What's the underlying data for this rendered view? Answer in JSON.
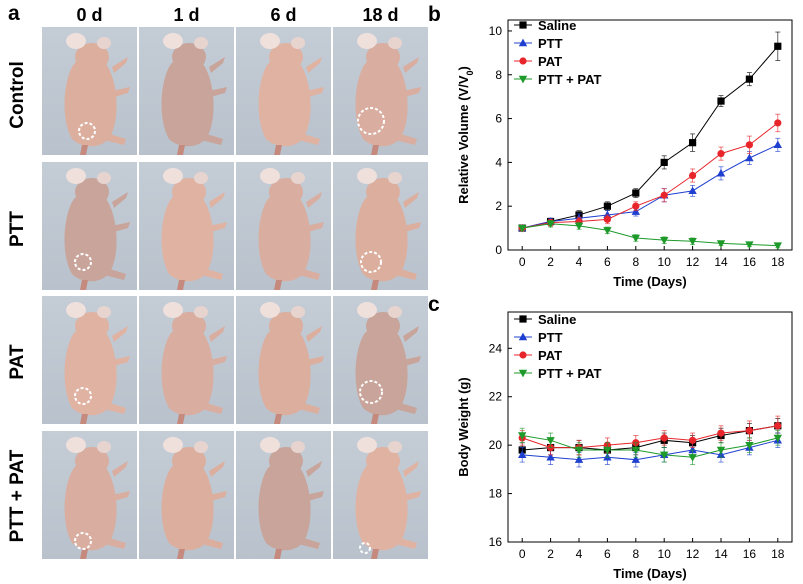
{
  "panel_a": {
    "letter": "a",
    "columns": [
      "0 d",
      "1 d",
      "6 d",
      "18 d"
    ],
    "rows": [
      "Control",
      "PTT",
      "PAT",
      "PTT + PAT"
    ],
    "skin_tones": [
      "#dcae9e",
      "#c8a49a",
      "#e0b2a2",
      "#d9ad9f"
    ],
    "background_color": "#c0c9d3"
  },
  "panel_b": {
    "letter": "b"
  },
  "panel_c": {
    "letter": "c"
  },
  "chart_data": [
    {
      "type": "line",
      "title": "",
      "xlabel": "Time (Days)",
      "ylabel": "Relative Volume (V/V",
      "ylabel_sub": "0",
      "ylabel_end": ")",
      "xlim": [
        -1,
        19
      ],
      "ylim": [
        0,
        10.5
      ],
      "xticks": [
        0,
        2,
        4,
        6,
        8,
        10,
        12,
        14,
        16,
        18
      ],
      "yticks": [
        0,
        2,
        4,
        6,
        8,
        10
      ],
      "x": [
        0,
        2,
        4,
        6,
        8,
        10,
        12,
        14,
        16,
        18
      ],
      "series": [
        {
          "name": "Saline",
          "color": "#000000",
          "marker": "square",
          "values": [
            1.0,
            1.3,
            1.6,
            2.0,
            2.6,
            4.0,
            4.9,
            6.8,
            7.8,
            9.3
          ],
          "errors": [
            0.1,
            0.15,
            0.2,
            0.2,
            0.2,
            0.3,
            0.4,
            0.25,
            0.3,
            0.65
          ]
        },
        {
          "name": "PTT",
          "color": "#1f3fd0",
          "marker": "triangle-up",
          "values": [
            1.0,
            1.3,
            1.45,
            1.6,
            1.75,
            2.5,
            2.7,
            3.5,
            4.2,
            4.8
          ],
          "errors": [
            0.1,
            0.15,
            0.2,
            0.2,
            0.2,
            0.3,
            0.25,
            0.3,
            0.3,
            0.3
          ]
        },
        {
          "name": "PAT",
          "color": "#e8252a",
          "marker": "circle",
          "values": [
            1.0,
            1.25,
            1.3,
            1.4,
            2.0,
            2.5,
            3.4,
            4.4,
            4.8,
            5.8
          ],
          "errors": [
            0.1,
            0.15,
            0.2,
            0.2,
            0.2,
            0.3,
            0.3,
            0.3,
            0.4,
            0.4
          ]
        },
        {
          "name": "PTT + PAT",
          "color": "#1d9a2a",
          "marker": "triangle-down",
          "values": [
            1.0,
            1.2,
            1.1,
            0.9,
            0.55,
            0.45,
            0.4,
            0.3,
            0.25,
            0.2
          ],
          "errors": [
            0.1,
            0.15,
            0.15,
            0.15,
            0.15,
            0.15,
            0.15,
            0.1,
            0.1,
            0.1
          ]
        }
      ],
      "legend": "top-left"
    },
    {
      "type": "line",
      "title": "",
      "xlabel": "Time (Days)",
      "ylabel": "Body Weight (g)",
      "xlim": [
        -1,
        19
      ],
      "ylim": [
        16,
        25.5
      ],
      "xticks": [
        0,
        2,
        4,
        6,
        8,
        10,
        12,
        14,
        16,
        18
      ],
      "yticks": [
        16,
        18,
        20,
        22,
        24
      ],
      "x": [
        0,
        2,
        4,
        6,
        8,
        10,
        12,
        14,
        16,
        18
      ],
      "series": [
        {
          "name": "Saline",
          "color": "#000000",
          "marker": "square",
          "values": [
            19.8,
            19.9,
            19.9,
            19.8,
            19.9,
            20.2,
            20.1,
            20.4,
            20.6,
            20.8
          ],
          "errors": [
            0.3,
            0.3,
            0.3,
            0.3,
            0.3,
            0.3,
            0.3,
            0.3,
            0.3,
            0.3
          ]
        },
        {
          "name": "PTT",
          "color": "#1f3fd0",
          "marker": "triangle-up",
          "values": [
            19.6,
            19.5,
            19.4,
            19.5,
            19.4,
            19.6,
            19.8,
            19.6,
            19.9,
            20.2
          ],
          "errors": [
            0.3,
            0.3,
            0.3,
            0.3,
            0.3,
            0.3,
            0.3,
            0.3,
            0.3,
            0.3
          ]
        },
        {
          "name": "PAT",
          "color": "#e8252a",
          "marker": "circle",
          "values": [
            20.3,
            19.9,
            19.9,
            20.0,
            20.1,
            20.3,
            20.2,
            20.5,
            20.6,
            20.8
          ],
          "errors": [
            0.3,
            0.3,
            0.3,
            0.3,
            0.3,
            0.3,
            0.3,
            0.3,
            0.4,
            0.4
          ]
        },
        {
          "name": "PTT + PAT",
          "color": "#1d9a2a",
          "marker": "triangle-down",
          "values": [
            20.4,
            20.2,
            19.8,
            19.8,
            19.8,
            19.6,
            19.5,
            19.8,
            20.0,
            20.3
          ],
          "errors": [
            0.3,
            0.3,
            0.3,
            0.3,
            0.3,
            0.3,
            0.3,
            0.3,
            0.3,
            0.3
          ]
        }
      ],
      "legend": "top-left"
    }
  ]
}
